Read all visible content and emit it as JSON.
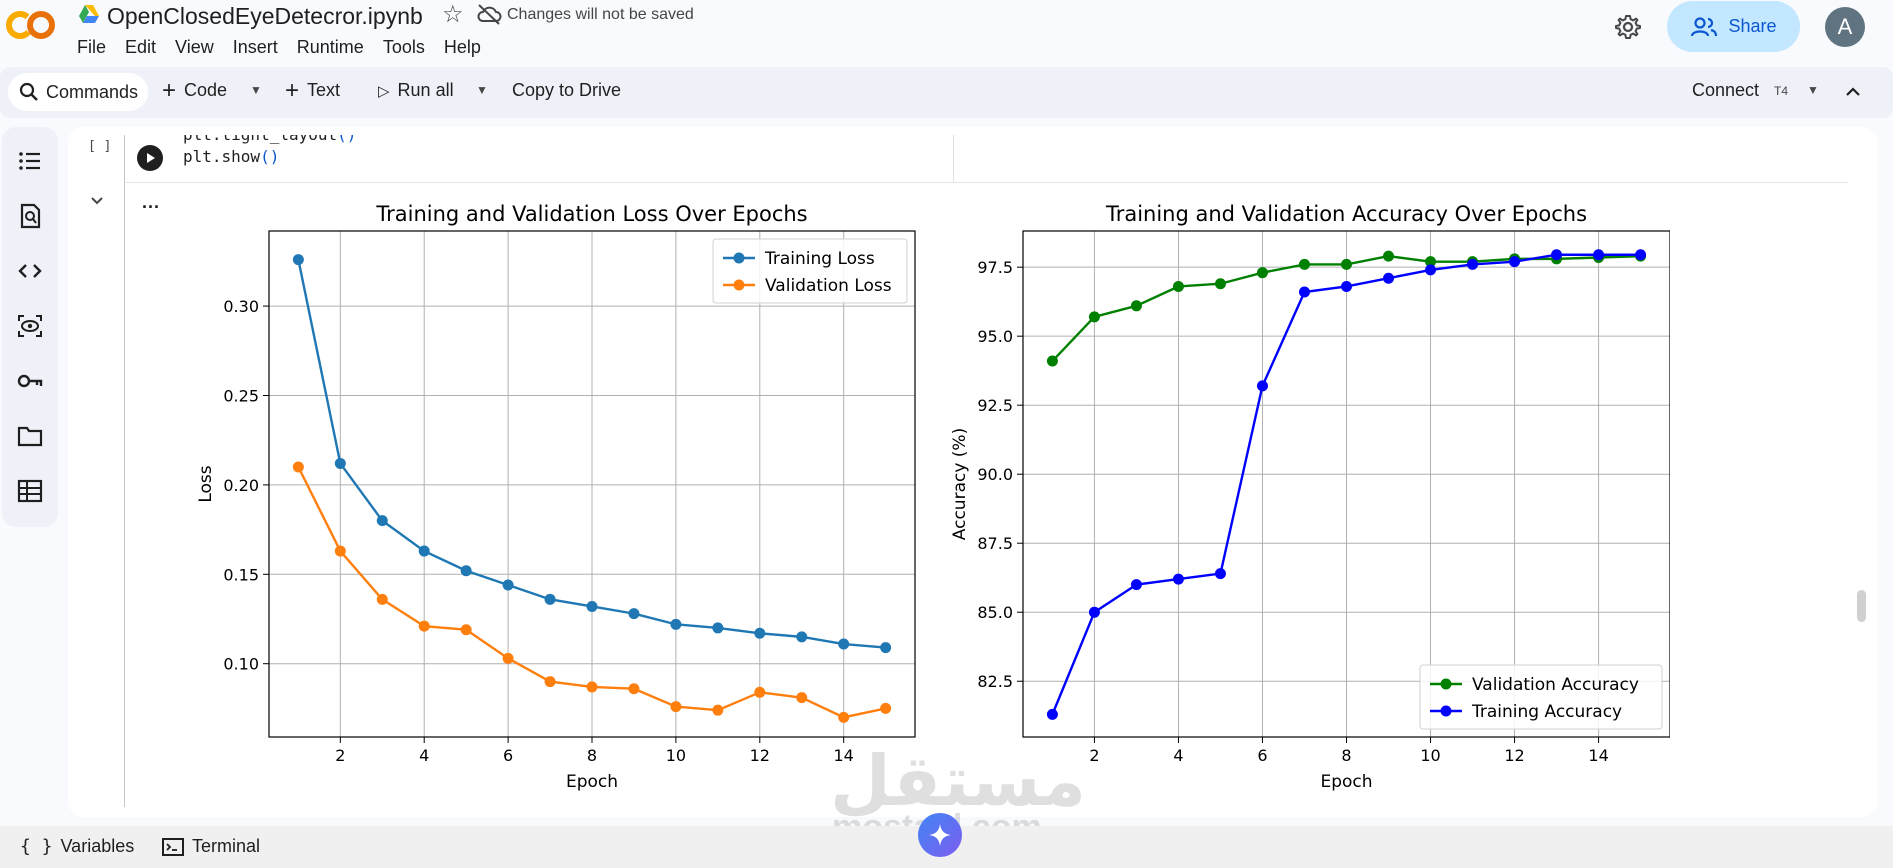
{
  "header": {
    "logo_text": "CO",
    "doc_title": "OpenClosedEyeDetecror.ipynb",
    "save_status": "Changes will not be saved",
    "menu": [
      "File",
      "Edit",
      "View",
      "Insert",
      "Runtime",
      "Tools",
      "Help"
    ],
    "share_label": "Share",
    "avatar_letter": "A"
  },
  "toolbar": {
    "commands_label": "Commands",
    "code_label": "Code",
    "text_label": "Text",
    "run_all_label": "Run all",
    "copy_to_drive_label": "Copy to Drive",
    "connect_label": "Connect",
    "runtime_badge": "T4"
  },
  "sidebar": {
    "icons": [
      "table-of-contents-icon",
      "find-icon",
      "code-snippets-icon",
      "variables-inspector-icon",
      "secrets-key-icon",
      "files-folder-icon",
      "data-table-icon"
    ]
  },
  "cell": {
    "execution_count": "[ ]",
    "code_lines": [
      {
        "prefix": "plt.tight_layout",
        "paren": "()"
      },
      {
        "prefix": "plt.show",
        "paren": "()"
      }
    ],
    "more_label": "..."
  },
  "bottom": {
    "variables_label": "Variables",
    "terminal_label": "Terminal"
  },
  "watermark": {
    "arabic": "مستقل",
    "latin": "mostaql.com"
  },
  "chart_data": [
    {
      "type": "line",
      "title": "Training and Validation Loss Over Epochs",
      "xlabel": "Epoch",
      "ylabel": "Loss",
      "x": [
        1,
        2,
        3,
        4,
        5,
        6,
        7,
        8,
        9,
        10,
        11,
        12,
        13,
        14,
        15
      ],
      "xticks": [
        "2",
        "4",
        "6",
        "8",
        "10",
        "12",
        "14"
      ],
      "yticks": [
        "0.10",
        "0.15",
        "0.20",
        "0.25",
        "0.30"
      ],
      "xlim": [
        0.3,
        15.7
      ],
      "ylim": [
        0.059,
        0.342
      ],
      "grid": true,
      "legend_position": "top-right",
      "series": [
        {
          "name": "Training Loss",
          "color": "#1f77b4",
          "values": [
            0.326,
            0.212,
            0.18,
            0.163,
            0.152,
            0.144,
            0.136,
            0.132,
            0.128,
            0.122,
            0.12,
            0.117,
            0.115,
            0.111,
            0.109
          ]
        },
        {
          "name": "Validation Loss",
          "color": "#ff7f0e",
          "values": [
            0.21,
            0.163,
            0.136,
            0.121,
            0.119,
            0.103,
            0.09,
            0.087,
            0.086,
            0.076,
            0.074,
            0.084,
            0.081,
            0.07,
            0.075
          ]
        }
      ]
    },
    {
      "type": "line",
      "title": "Training and Validation Accuracy Over Epochs",
      "xlabel": "Epoch",
      "ylabel": "Accuracy (%)",
      "x": [
        1,
        2,
        3,
        4,
        5,
        6,
        7,
        8,
        9,
        10,
        11,
        12,
        13,
        14,
        15
      ],
      "xticks": [
        "2",
        "4",
        "6",
        "8",
        "10",
        "12",
        "14"
      ],
      "yticks": [
        "82.5",
        "85.0",
        "87.5",
        "90.0",
        "92.5",
        "95.0",
        "97.5"
      ],
      "xlim": [
        0.3,
        15.7
      ],
      "ylim": [
        80.48,
        98.81
      ],
      "grid": true,
      "legend_position": "bottom-right",
      "series": [
        {
          "name": "Validation Accuracy",
          "color": "#008000",
          "values": [
            94.1,
            95.7,
            96.1,
            96.8,
            96.9,
            97.3,
            97.6,
            97.6,
            97.9,
            97.7,
            97.7,
            97.8,
            97.8,
            97.85,
            97.9
          ]
        },
        {
          "name": "Training Accuracy",
          "color": "#0000ff",
          "values": [
            81.3,
            85.0,
            86.0,
            86.2,
            86.4,
            93.2,
            96.6,
            96.8,
            97.1,
            97.4,
            97.6,
            97.7,
            97.95,
            97.95,
            97.95
          ]
        }
      ]
    }
  ]
}
